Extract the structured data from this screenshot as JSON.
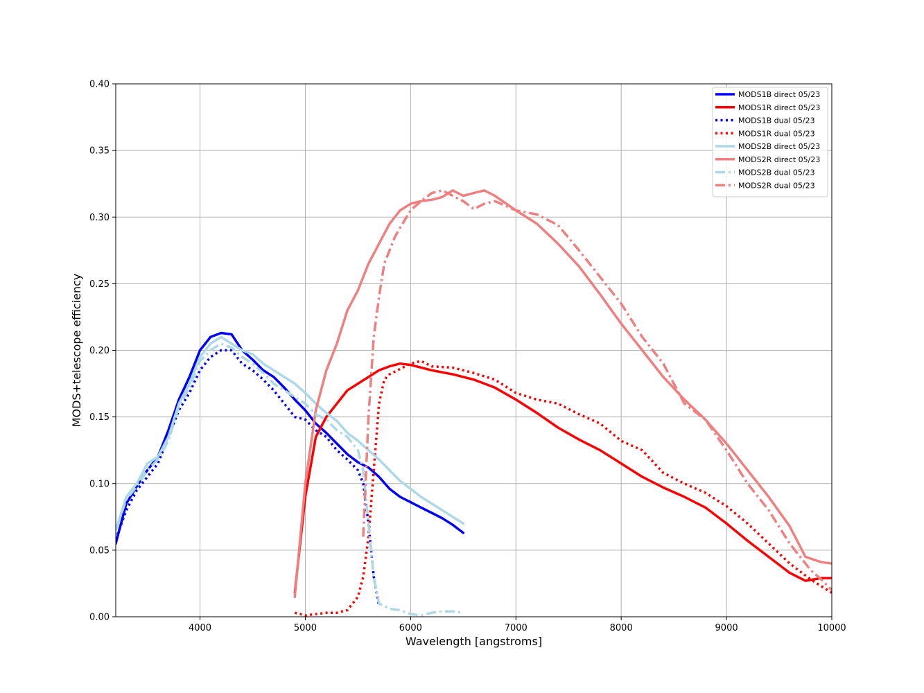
{
  "chart_data": {
    "type": "line",
    "title": "",
    "xlabel": "Wavelength [angstroms]",
    "ylabel": "MODS+telescope efficiency",
    "xlim": [
      3200,
      10000
    ],
    "ylim": [
      0,
      0.4
    ],
    "xticks": [
      4000,
      5000,
      6000,
      7000,
      8000,
      9000,
      10000
    ],
    "yticks": [
      0.0,
      0.05,
      0.1,
      0.15,
      0.2,
      0.25,
      0.3,
      0.35,
      0.4
    ],
    "ytick_labels": [
      "0.00",
      "0.05",
      "0.10",
      "0.15",
      "0.20",
      "0.25",
      "0.30",
      "0.35",
      "0.40"
    ],
    "grid": true,
    "legend_position": "top-right",
    "series": [
      {
        "name": "MODS1B direct 05/23",
        "color": "#0000ff",
        "style": "solid",
        "x": [
          3200,
          3300,
          3400,
          3500,
          3600,
          3700,
          3800,
          3900,
          4000,
          4100,
          4200,
          4300,
          4400,
          4500,
          4600,
          4700,
          4800,
          4900,
          5000,
          5100,
          5200,
          5300,
          5400,
          5500,
          5600,
          5700,
          5800,
          5900,
          6000,
          6100,
          6200,
          6300,
          6400,
          6500
        ],
        "y": [
          0.055,
          0.085,
          0.098,
          0.11,
          0.12,
          0.14,
          0.163,
          0.18,
          0.2,
          0.21,
          0.213,
          0.212,
          0.2,
          0.193,
          0.185,
          0.18,
          0.172,
          0.163,
          0.155,
          0.145,
          0.138,
          0.13,
          0.122,
          0.116,
          0.112,
          0.105,
          0.096,
          0.09,
          0.086,
          0.082,
          0.078,
          0.074,
          0.069,
          0.063
        ]
      },
      {
        "name": "MODS1R direct 05/23",
        "color": "#ff0000",
        "style": "solid",
        "x": [
          4900,
          5000,
          5100,
          5200,
          5300,
          5400,
          5500,
          5600,
          5700,
          5800,
          5900,
          6000,
          6200,
          6400,
          6600,
          6800,
          7000,
          7200,
          7400,
          7600,
          7800,
          8000,
          8200,
          8400,
          8600,
          8800,
          9000,
          9200,
          9400,
          9600,
          9750,
          9900,
          10000
        ],
        "y": [
          0.018,
          0.09,
          0.135,
          0.15,
          0.16,
          0.17,
          0.175,
          0.18,
          0.185,
          0.188,
          0.19,
          0.189,
          0.185,
          0.182,
          0.178,
          0.172,
          0.163,
          0.153,
          0.142,
          0.133,
          0.125,
          0.115,
          0.105,
          0.097,
          0.09,
          0.082,
          0.07,
          0.057,
          0.045,
          0.033,
          0.027,
          0.029,
          0.029
        ]
      },
      {
        "name": "MODS1B dual 05/23",
        "color": "#0000ff",
        "style": "dotted",
        "x": [
          3200,
          3300,
          3400,
          3500,
          3600,
          3700,
          3800,
          3900,
          4000,
          4100,
          4200,
          4300,
          4400,
          4500,
          4600,
          4700,
          4800,
          4900,
          5000,
          5100,
          5200,
          5300,
          5400,
          5500,
          5550,
          5600,
          5650,
          5700
        ],
        "y": [
          0.058,
          0.08,
          0.095,
          0.105,
          0.115,
          0.135,
          0.155,
          0.168,
          0.185,
          0.195,
          0.2,
          0.2,
          0.19,
          0.185,
          0.178,
          0.17,
          0.16,
          0.15,
          0.148,
          0.14,
          0.135,
          0.125,
          0.118,
          0.11,
          0.1,
          0.07,
          0.03,
          0.008
        ]
      },
      {
        "name": "MODS1R dual 05/23",
        "color": "#ff0000",
        "style": "dotted",
        "x": [
          4900,
          5000,
          5100,
          5200,
          5300,
          5400,
          5500,
          5550,
          5600,
          5650,
          5700,
          5750,
          5800,
          5900,
          6000,
          6100,
          6200,
          6400,
          6600,
          6800,
          7000,
          7200,
          7400,
          7600,
          7800,
          8000,
          8200,
          8400,
          8600,
          8800,
          9000,
          9200,
          9400,
          9600,
          9800,
          10000
        ],
        "y": [
          0.003,
          0.001,
          0.002,
          0.003,
          0.003,
          0.005,
          0.015,
          0.03,
          0.06,
          0.11,
          0.16,
          0.178,
          0.182,
          0.186,
          0.19,
          0.192,
          0.188,
          0.187,
          0.183,
          0.178,
          0.168,
          0.163,
          0.16,
          0.152,
          0.145,
          0.132,
          0.125,
          0.108,
          0.1,
          0.093,
          0.083,
          0.07,
          0.055,
          0.04,
          0.028,
          0.018
        ]
      },
      {
        "name": "MODS2B direct 05/23",
        "color": "#add8e6",
        "style": "solid",
        "x": [
          3200,
          3300,
          3400,
          3500,
          3600,
          3700,
          3800,
          3900,
          4000,
          4100,
          4200,
          4300,
          4400,
          4500,
          4600,
          4700,
          4800,
          4900,
          5000,
          5100,
          5200,
          5300,
          5400,
          5500,
          5600,
          5700,
          5800,
          5900,
          6000,
          6100,
          6200,
          6300,
          6400,
          6500
        ],
        "y": [
          0.065,
          0.09,
          0.1,
          0.115,
          0.12,
          0.135,
          0.16,
          0.175,
          0.195,
          0.205,
          0.21,
          0.205,
          0.2,
          0.197,
          0.19,
          0.185,
          0.18,
          0.175,
          0.168,
          0.16,
          0.153,
          0.147,
          0.138,
          0.132,
          0.125,
          0.118,
          0.11,
          0.102,
          0.096,
          0.09,
          0.085,
          0.08,
          0.075,
          0.07
        ]
      },
      {
        "name": "MODS2R direct 05/23",
        "color": "#f08080",
        "style": "solid",
        "x": [
          4900,
          5000,
          5100,
          5200,
          5300,
          5400,
          5500,
          5600,
          5700,
          5800,
          5900,
          6000,
          6100,
          6200,
          6300,
          6400,
          6500,
          6600,
          6700,
          6800,
          7000,
          7200,
          7400,
          7600,
          7800,
          8000,
          8200,
          8400,
          8600,
          8800,
          9000,
          9200,
          9400,
          9600,
          9750,
          9900,
          10000
        ],
        "y": [
          0.015,
          0.1,
          0.155,
          0.185,
          0.205,
          0.23,
          0.245,
          0.265,
          0.28,
          0.295,
          0.305,
          0.31,
          0.312,
          0.313,
          0.315,
          0.32,
          0.316,
          0.318,
          0.32,
          0.316,
          0.305,
          0.295,
          0.28,
          0.263,
          0.242,
          0.22,
          0.2,
          0.18,
          0.163,
          0.148,
          0.13,
          0.11,
          0.09,
          0.068,
          0.045,
          0.041,
          0.04
        ]
      },
      {
        "name": "MODS2B dual 05/23",
        "color": "#add8e6",
        "style": "dashdot",
        "x": [
          3200,
          3300,
          3400,
          3500,
          3600,
          3700,
          3800,
          3900,
          4000,
          4100,
          4200,
          4300,
          4400,
          4500,
          4600,
          4700,
          4800,
          4900,
          5000,
          5100,
          5200,
          5300,
          5400,
          5500,
          5550,
          5600,
          5650,
          5700,
          5800,
          5900,
          6000,
          6100,
          6200,
          6300,
          6400,
          6500
        ],
        "y": [
          0.065,
          0.088,
          0.098,
          0.11,
          0.118,
          0.132,
          0.158,
          0.172,
          0.192,
          0.2,
          0.205,
          0.202,
          0.195,
          0.19,
          0.183,
          0.175,
          0.17,
          0.165,
          0.16,
          0.152,
          0.148,
          0.14,
          0.135,
          0.125,
          0.11,
          0.07,
          0.03,
          0.01,
          0.006,
          0.005,
          0.002,
          0.001,
          0.003,
          0.004,
          0.004,
          0.003
        ]
      },
      {
        "name": "MODS2R dual 05/23",
        "color": "#f08080",
        "style": "dashdot",
        "x": [
          5550,
          5600,
          5650,
          5700,
          5750,
          5800,
          5850,
          5900,
          6000,
          6100,
          6200,
          6300,
          6400,
          6500,
          6600,
          6700,
          6800,
          7000,
          7200,
          7400,
          7600,
          7800,
          8000,
          8200,
          8400,
          8600,
          8800,
          9000,
          9200,
          9400,
          9600,
          9800,
          9900,
          10000
        ],
        "y": [
          0.06,
          0.15,
          0.21,
          0.24,
          0.265,
          0.275,
          0.285,
          0.292,
          0.305,
          0.312,
          0.318,
          0.32,
          0.316,
          0.312,
          0.306,
          0.31,
          0.312,
          0.305,
          0.302,
          0.294,
          0.275,
          0.255,
          0.235,
          0.21,
          0.19,
          0.16,
          0.148,
          0.125,
          0.1,
          0.08,
          0.055,
          0.035,
          0.028,
          0.02
        ]
      }
    ]
  }
}
